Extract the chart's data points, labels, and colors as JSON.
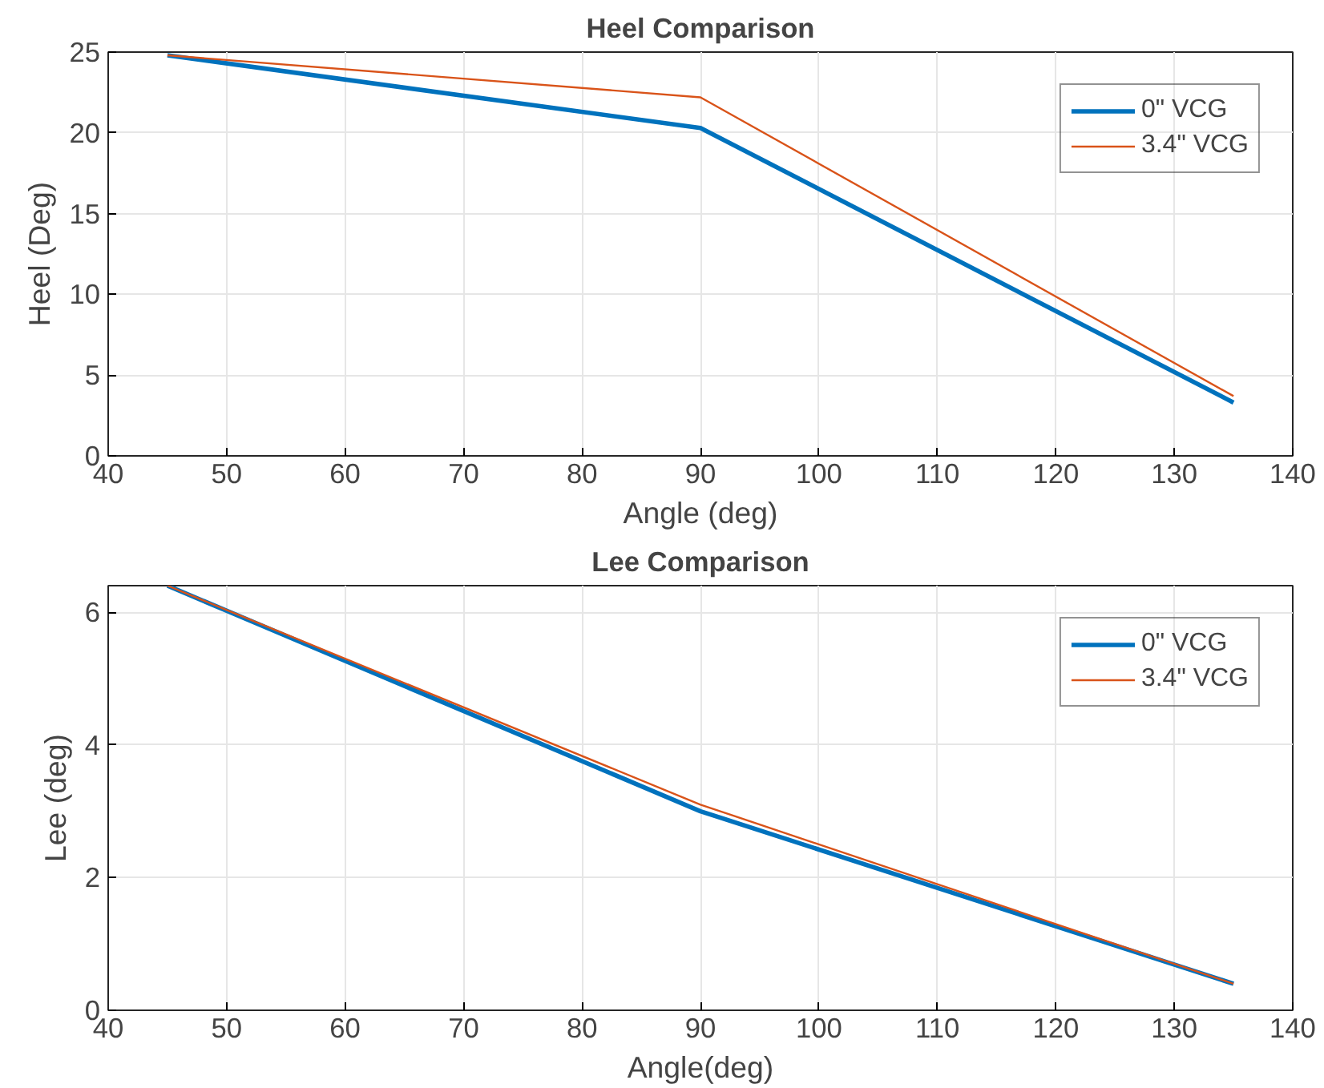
{
  "chart_data": [
    {
      "type": "line",
      "title": "Heel Comparison",
      "xlabel": "Angle (deg)",
      "ylabel": "Heel (Deg)",
      "x": [
        45,
        90,
        135
      ],
      "series": [
        {
          "name": "0\" VCG",
          "color": "#0072bd",
          "values": [
            24.8,
            20.3,
            3.3
          ]
        },
        {
          "name": "3.4\" VCG",
          "color": "#d95319",
          "values": [
            24.8,
            22.2,
            3.7
          ]
        }
      ],
      "xlim": [
        40,
        140
      ],
      "xticks": [
        40,
        50,
        60,
        70,
        80,
        90,
        100,
        110,
        120,
        130,
        140
      ],
      "ylim": [
        0,
        25
      ],
      "yticks": [
        0,
        5,
        10,
        15,
        20,
        25
      ],
      "grid": true,
      "legend": "top right"
    },
    {
      "type": "line",
      "title": "Lee Comparison",
      "xlabel": "Angle(deg)",
      "ylabel": "Lee (deg)",
      "x": [
        45,
        90,
        135
      ],
      "series": [
        {
          "name": "0\" VCG",
          "color": "#0072bd",
          "values": [
            6.4,
            3.0,
            0.4
          ]
        },
        {
          "name": "3.4\" VCG",
          "color": "#d95319",
          "values": [
            6.4,
            3.1,
            0.4
          ]
        }
      ],
      "xlim": [
        40,
        140
      ],
      "xticks": [
        40,
        50,
        60,
        70,
        80,
        90,
        100,
        110,
        120,
        130,
        140
      ],
      "ylim": [
        0,
        6.4
      ],
      "yticks": [
        0,
        2,
        4,
        6
      ],
      "grid": true,
      "legend": "top right"
    }
  ]
}
